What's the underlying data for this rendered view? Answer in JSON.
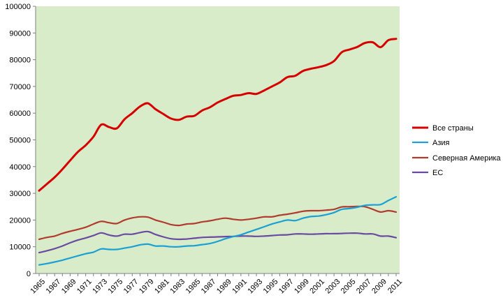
{
  "chart_data": {
    "type": "line",
    "title": "",
    "xlabel": "",
    "ylabel": "",
    "ylim": [
      0,
      100000
    ],
    "yticks": [
      0,
      10000,
      20000,
      30000,
      40000,
      50000,
      60000,
      70000,
      80000,
      90000,
      100000
    ],
    "ytick_labels": [
      "0",
      "10000",
      "20000",
      "30000",
      "40000",
      "50000",
      "60000",
      "70000",
      "80000",
      "90000",
      "100000"
    ],
    "x": [
      1965,
      1966,
      1967,
      1968,
      1969,
      1970,
      1971,
      1972,
      1973,
      1974,
      1975,
      1976,
      1977,
      1978,
      1979,
      1980,
      1981,
      1982,
      1983,
      1984,
      1985,
      1986,
      1987,
      1988,
      1989,
      1990,
      1991,
      1992,
      1993,
      1994,
      1995,
      1996,
      1997,
      1998,
      1999,
      2000,
      2001,
      2002,
      2003,
      2004,
      2005,
      2006,
      2007,
      2008,
      2009,
      2010,
      2011
    ],
    "xtick_labels": [
      "1965",
      "1967",
      "1969",
      "1971",
      "1973",
      "1975",
      "1977",
      "1979",
      "1981",
      "1983",
      "1985",
      "1987",
      "1989",
      "1991",
      "1993",
      "1995",
      "1997",
      "1999",
      "2001",
      "2003",
      "2005",
      "2007",
      "2009",
      "2011"
    ],
    "grid": "plot-area-background",
    "legend_position": "right",
    "plot_background": "#d9ecc9",
    "series": [
      {
        "name": "Все страны",
        "color": "#d60000",
        "values": [
          31000,
          33500,
          36000,
          39000,
          42300,
          45500,
          48000,
          51200,
          55700,
          54800,
          54300,
          57700,
          60000,
          62500,
          63700,
          61500,
          59700,
          58000,
          57500,
          58700,
          59000,
          61000,
          62200,
          64000,
          65300,
          66500,
          66800,
          67500,
          67200,
          68500,
          70000,
          71500,
          73500,
          74000,
          75800,
          76600,
          77200,
          78000,
          79500,
          82800,
          83800,
          84800,
          86300,
          86500,
          84700,
          87300,
          87800
        ]
      },
      {
        "name": "Азия",
        "color": "#1aa0d4",
        "values": [
          3200,
          3700,
          4300,
          5000,
          5800,
          6600,
          7400,
          8000,
          9200,
          9000,
          9000,
          9500,
          10000,
          10700,
          11000,
          10300,
          10300,
          10000,
          10000,
          10300,
          10400,
          10800,
          11200,
          12000,
          13000,
          13800,
          14500,
          15500,
          16500,
          17500,
          18500,
          19300,
          20000,
          19800,
          20700,
          21300,
          21500,
          22000,
          22800,
          24000,
          24300,
          24800,
          25500,
          25700,
          25800,
          27300,
          28700
        ]
      },
      {
        "name": "Северная Америка",
        "color": "#b03a2e",
        "values": [
          12800,
          13500,
          14000,
          15000,
          15800,
          16500,
          17300,
          18500,
          19500,
          19000,
          18700,
          20000,
          20800,
          21200,
          21100,
          20000,
          19200,
          18300,
          18000,
          18500,
          18700,
          19300,
          19700,
          20300,
          20700,
          20300,
          20000,
          20300,
          20700,
          21200,
          21200,
          21800,
          22200,
          22700,
          23300,
          23500,
          23500,
          23700,
          24000,
          24900,
          25000,
          25100,
          25000,
          24000,
          23000,
          23500,
          23000
        ]
      },
      {
        "name": "ЕС",
        "color": "#6a4aa0",
        "values": [
          7800,
          8500,
          9300,
          10300,
          11500,
          12500,
          13300,
          14200,
          15200,
          14400,
          14000,
          14700,
          14700,
          15300,
          15700,
          14600,
          13700,
          13000,
          12800,
          12900,
          13200,
          13500,
          13600,
          13700,
          13800,
          13900,
          14000,
          14000,
          13900,
          14000,
          14200,
          14400,
          14500,
          14800,
          14800,
          14700,
          14800,
          14900,
          14900,
          15000,
          15100,
          15100,
          14800,
          14800,
          14000,
          14000,
          13400
        ]
      }
    ]
  }
}
